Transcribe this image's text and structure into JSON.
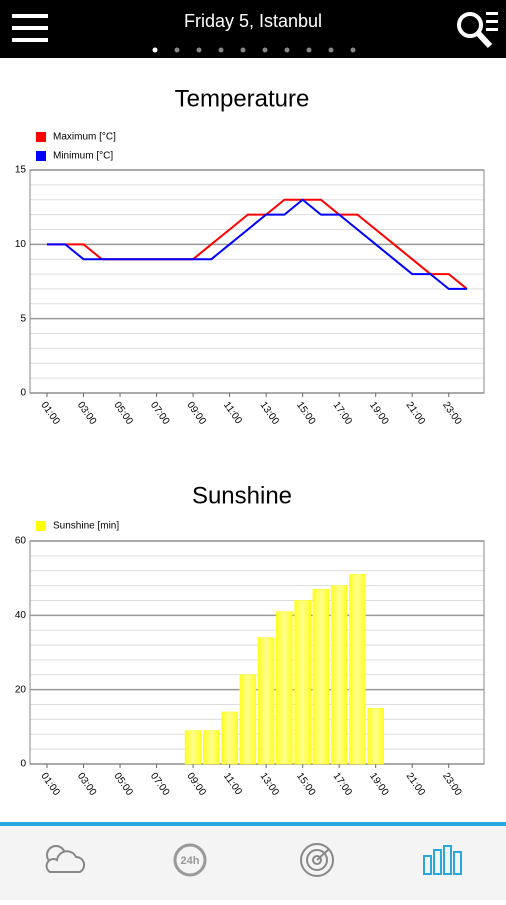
{
  "header": {
    "title": "Friday 5, Istanbul"
  },
  "nav": {
    "hourly_icon_text": "24h"
  },
  "chart_data": [
    {
      "type": "line",
      "title": "Temperature",
      "categories": [
        "01:00",
        null,
        "03:00",
        null,
        "05:00",
        null,
        "07:00",
        null,
        "09:00",
        null,
        "11:00",
        null,
        "13:00",
        null,
        "15:00",
        null,
        "17:00",
        null,
        "19:00",
        null,
        "21:00",
        null,
        "23:00",
        null
      ],
      "series": [
        {
          "name": "Maximum [°C]",
          "color": "#ff0000",
          "values": [
            10,
            10,
            10,
            9,
            9,
            9,
            9,
            9,
            9,
            10,
            11,
            12,
            12,
            13,
            13,
            13,
            12,
            12,
            11,
            10,
            9,
            8,
            8,
            7
          ]
        },
        {
          "name": "Minimum [°C]",
          "color": "#0000ff",
          "values": [
            10,
            10,
            9,
            9,
            9,
            9,
            9,
            9,
            9,
            9,
            10,
            11,
            12,
            12,
            13,
            12,
            12,
            11,
            10,
            9,
            8,
            8,
            7,
            7
          ]
        }
      ],
      "ylim": [
        0,
        15
      ],
      "yticks": [
        0,
        5,
        10,
        15
      ],
      "grid": true
    },
    {
      "type": "bar",
      "title": "Sunshine",
      "categories": [
        "01:00",
        null,
        "03:00",
        null,
        "05:00",
        null,
        "07:00",
        null,
        "09:00",
        null,
        "11:00",
        null,
        "13:00",
        null,
        "15:00",
        null,
        "17:00",
        null,
        "19:00",
        null,
        "21:00",
        null,
        "23:00",
        null
      ],
      "series": [
        {
          "name": "Sunshine [min]",
          "color": "#ffff00",
          "values": [
            0,
            0,
            0,
            0,
            0,
            0,
            0,
            0,
            9,
            9,
            14,
            24,
            34,
            41,
            44,
            47,
            48,
            51,
            15,
            0,
            0,
            0,
            0,
            0
          ]
        }
      ],
      "ylim": [
        0,
        60
      ],
      "yticks": [
        0,
        20,
        40,
        60
      ],
      "grid": true
    }
  ]
}
